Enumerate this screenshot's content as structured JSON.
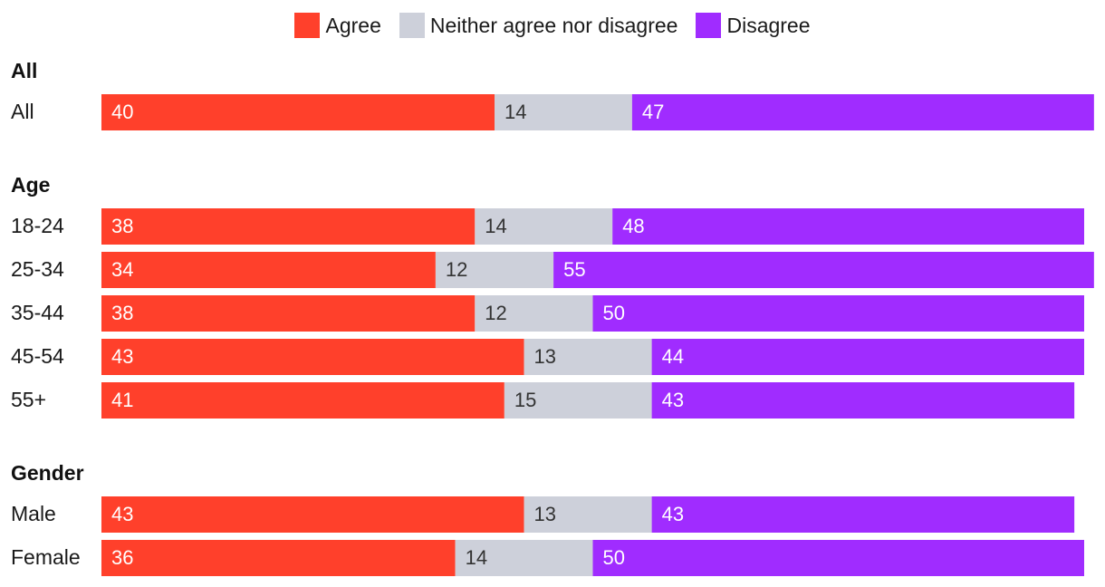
{
  "chart_data": {
    "type": "bar",
    "orientation": "horizontal",
    "stacked": true,
    "legend_position": "top",
    "grid": false,
    "series": [
      {
        "name": "Agree",
        "color": "#ff402b"
      },
      {
        "name": "Neither agree nor disagree",
        "color": "#cdd0da"
      },
      {
        "name": "Disagree",
        "color": "#a02cff"
      }
    ],
    "groups": [
      {
        "title": "All",
        "rows": [
          {
            "label": "All",
            "values": [
              40,
              14,
              47
            ]
          }
        ]
      },
      {
        "title": "Age",
        "rows": [
          {
            "label": "18-24",
            "values": [
              38,
              14,
              48
            ]
          },
          {
            "label": "25-34",
            "values": [
              34,
              12,
              55
            ]
          },
          {
            "label": "35-44",
            "values": [
              38,
              12,
              50
            ]
          },
          {
            "label": "45-54",
            "values": [
              43,
              13,
              44
            ]
          },
          {
            "label": "55+",
            "values": [
              41,
              15,
              43
            ]
          }
        ]
      },
      {
        "title": "Gender",
        "rows": [
          {
            "label": "Male",
            "values": [
              43,
              13,
              43
            ]
          },
          {
            "label": "Female",
            "values": [
              36,
              14,
              50
            ]
          }
        ]
      }
    ]
  }
}
